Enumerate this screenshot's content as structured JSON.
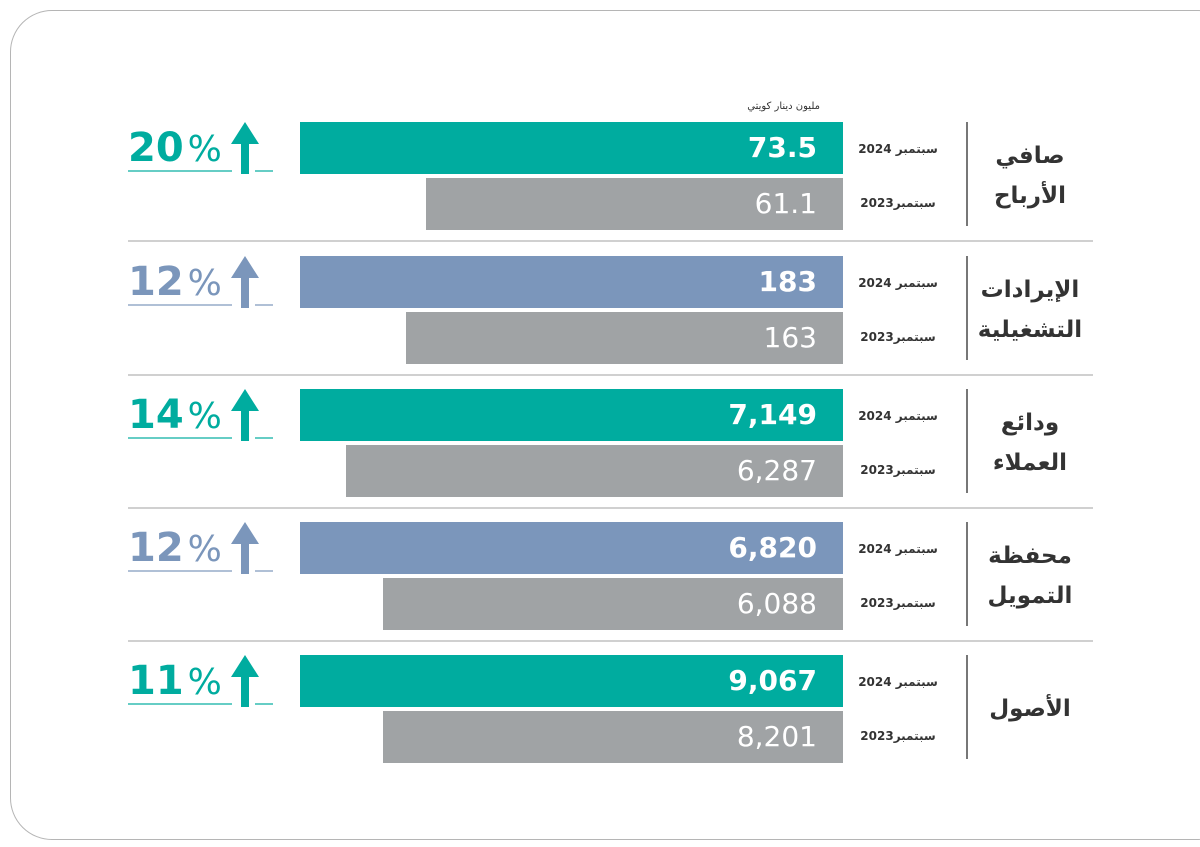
{
  "colors": {
    "teal": "#00ac9f",
    "blue": "#7b96bb",
    "gray": "#a0a3a5"
  },
  "chart_data": {
    "type": "bar",
    "unit": "مليون دينار كويتي",
    "period_labels": [
      "سبتمبر 2024",
      "سبتمبر2023"
    ],
    "rows": [
      {
        "title": "صافي الأرباح",
        "current": "73.5",
        "previous": "61.1",
        "change": "20",
        "change_sign": "%",
        "color": "teal"
      },
      {
        "title": "الإيرادات التشغيلية",
        "current": "183",
        "previous": "163",
        "change": "12",
        "change_sign": "%",
        "color": "blue"
      },
      {
        "title": "ودائع العملاء",
        "current": "7,149",
        "previous": "6,287",
        "change": "14",
        "change_sign": "%",
        "color": "teal"
      },
      {
        "title": "محفظة التمويل",
        "current": "6,820",
        "previous": "6,088",
        "change": "12",
        "change_sign": "%",
        "color": "blue"
      },
      {
        "title": "الأصول",
        "current": "9,067",
        "previous": "8,201",
        "change": "11",
        "change_sign": "%",
        "color": "teal"
      }
    ]
  }
}
